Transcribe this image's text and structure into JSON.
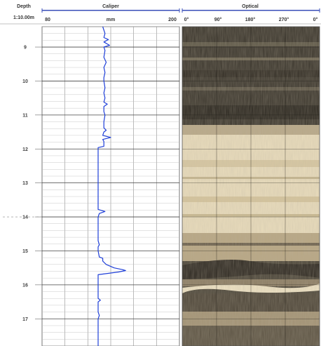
{
  "header": {
    "depth_title": "Depth",
    "depth_scale": "1:10.00m",
    "caliper_title": "Caliper",
    "caliper_unit": "mm",
    "caliper_min": "80",
    "caliper_max": "200",
    "optical_title": "Optical",
    "optical_ticks": [
      "0°",
      "90°",
      "180°",
      "270°",
      "0°"
    ]
  },
  "colors": {
    "caliper_line": "#1f3fd8",
    "track_line": "#3a4fb8",
    "grid": "#777777",
    "light_rock": "#e7d7b4",
    "dark_rock": "#3b362c"
  },
  "chart_data": {
    "type": "line",
    "title": "Caliper",
    "xlabel": "mm",
    "ylabel": "Depth",
    "xlim": [
      80,
      200
    ],
    "ylim": [
      8.4,
      17.8
    ],
    "depth_ticks": [
      9,
      10,
      11,
      12,
      13,
      14,
      15,
      16,
      17
    ],
    "series": [
      {
        "name": "Caliper",
        "points": [
          [
            8.4,
            133
          ],
          [
            8.6,
            135
          ],
          [
            8.72,
            134
          ],
          [
            8.78,
            138
          ],
          [
            8.85,
            134
          ],
          [
            8.95,
            139
          ],
          [
            9.0,
            134
          ],
          [
            9.1,
            135
          ],
          [
            9.3,
            134
          ],
          [
            9.45,
            136
          ],
          [
            9.6,
            134
          ],
          [
            9.75,
            135
          ],
          [
            9.9,
            134
          ],
          [
            10.0,
            134
          ],
          [
            10.2,
            135
          ],
          [
            10.35,
            134
          ],
          [
            10.5,
            135
          ],
          [
            10.62,
            134
          ],
          [
            10.68,
            137
          ],
          [
            10.75,
            134
          ],
          [
            10.9,
            134
          ],
          [
            11.0,
            135
          ],
          [
            11.2,
            134
          ],
          [
            11.38,
            134
          ],
          [
            11.45,
            136
          ],
          [
            11.5,
            134
          ],
          [
            11.6,
            133
          ],
          [
            11.66,
            140
          ],
          [
            11.72,
            133
          ],
          [
            11.78,
            134
          ],
          [
            11.92,
            134
          ],
          [
            11.96,
            129
          ],
          [
            12.0,
            129
          ],
          [
            12.5,
            129
          ],
          [
            13.0,
            129
          ],
          [
            13.5,
            129
          ],
          [
            13.78,
            129
          ],
          [
            13.84,
            135
          ],
          [
            13.9,
            130
          ],
          [
            14.0,
            129
          ],
          [
            14.3,
            129
          ],
          [
            14.7,
            129
          ],
          [
            14.82,
            130
          ],
          [
            14.88,
            129
          ],
          [
            15.0,
            129
          ],
          [
            15.18,
            130
          ],
          [
            15.22,
            133
          ],
          [
            15.3,
            133
          ],
          [
            15.4,
            136
          ],
          [
            15.5,
            143
          ],
          [
            15.55,
            150
          ],
          [
            15.58,
            153
          ],
          [
            15.62,
            147
          ],
          [
            15.7,
            129
          ],
          [
            15.75,
            129
          ],
          [
            15.8,
            129
          ],
          [
            16.0,
            129
          ],
          [
            16.2,
            129
          ],
          [
            16.4,
            129
          ],
          [
            16.45,
            131
          ],
          [
            16.5,
            129
          ],
          [
            16.8,
            129
          ],
          [
            16.9,
            130
          ],
          [
            17.0,
            129
          ],
          [
            17.3,
            129
          ],
          [
            17.6,
            129
          ],
          [
            17.8,
            129
          ]
        ]
      }
    ]
  }
}
